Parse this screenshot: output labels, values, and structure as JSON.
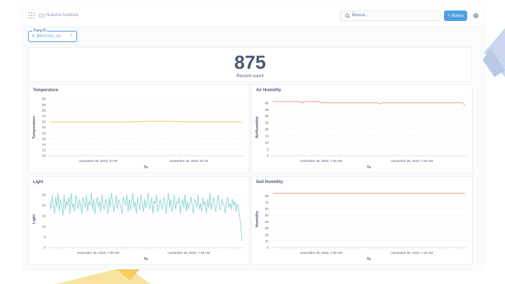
{
  "colors": {
    "accent": "#509ee3",
    "temperature": "#f2c94c",
    "air_humidity": "#ef8c8c",
    "light": "#88d3d4",
    "soil_humidity": "#ef8c8c"
  },
  "header": {
    "breadcrumb": "Nuestra Analítica",
    "search_placeholder": "Buscar...",
    "new_button": "Nuevo",
    "logo_icon": "metabase-logo-icon",
    "search_icon": "search-icon",
    "settings_icon": "gear-icon",
    "folder_icon": "folder-icon"
  },
  "filter": {
    "label": "Thing ID",
    "value": "P_BROCOLI_01",
    "clear": "×"
  },
  "kpi": {
    "value": "875",
    "label": "Record count"
  },
  "chart_data": [
    {
      "id": "temperature",
      "type": "line",
      "title": "Temperature",
      "xlabel": "Ts",
      "ylabel": "Temperature",
      "yticks": [
        10,
        12,
        14,
        16,
        18,
        20,
        22,
        24,
        26,
        28,
        30
      ],
      "ylim": [
        10,
        30
      ],
      "xtick_labels": [
        "noviembre 26, 2023, 07:00",
        "noviembre 26, 2023, 07:15"
      ],
      "xtick_pos": [
        0.255,
        0.72
      ],
      "series": [
        {
          "values": [
            21.8,
            21.8,
            21.8,
            21.8,
            21.8,
            21.8,
            21.8,
            21.8,
            21.8,
            21.8,
            21.8,
            21.8,
            21.8,
            21.8,
            21.8,
            21.8,
            21.8,
            21.8,
            21.8,
            21.8,
            21.9,
            21.9,
            22.0,
            22.0,
            22.0,
            22.1,
            22.1,
            22.1,
            22.1,
            22.1,
            22.1,
            22.1,
            22.0,
            22.0,
            22.0,
            21.9,
            21.9,
            21.9,
            21.9,
            21.9,
            21.9,
            21.9,
            21.9,
            21.9,
            21.9,
            21.9,
            21.9,
            21.9,
            21.9,
            21.9
          ]
        }
      ]
    },
    {
      "id": "air_humidity",
      "type": "line",
      "title": "Air Humidity",
      "xlabel": "Ts",
      "ylabel": "AirHumidity",
      "yticks": [
        0,
        5,
        10,
        15,
        20,
        25,
        30,
        35,
        40
      ],
      "ylim": [
        0,
        43
      ],
      "xtick_labels": [
        "noviembre 26, 2023, 7:00 AM",
        "noviembre 26, 2023, 7:15 AM"
      ],
      "xtick_pos": [
        0.255,
        0.72
      ],
      "series": [
        {
          "values": [
            41,
            41,
            41,
            41,
            41,
            41,
            41,
            41,
            41,
            41,
            41,
            41,
            40,
            41,
            41,
            41,
            41,
            41,
            41,
            41,
            40,
            40,
            40,
            40,
            40,
            40,
            40,
            40,
            40,
            40,
            40,
            40,
            40,
            40,
            40,
            40,
            40,
            40,
            40,
            40,
            40,
            40,
            40,
            40,
            39,
            40,
            40,
            40,
            40,
            40,
            40,
            40,
            40,
            40,
            40,
            40,
            40,
            40,
            40,
            40,
            40,
            40,
            40,
            40,
            40,
            40,
            40,
            40,
            40,
            40,
            40,
            40,
            40,
            40,
            40,
            40,
            40,
            40,
            40,
            38
          ]
        }
      ]
    },
    {
      "id": "light",
      "type": "line",
      "title": "Light",
      "xlabel": "Ts",
      "ylabel": "Light",
      "yticks": [
        0,
        5,
        10,
        15,
        20,
        25
      ],
      "ylim": [
        0,
        27
      ],
      "xtick_labels": [
        "noviembre 26, 2023, 7:00 AM",
        "noviembre 26, 2023, 7:15 AM"
      ],
      "xtick_pos": [
        0.255,
        0.72
      ],
      "series": [
        {
          "values": [
            22,
            18,
            25,
            20,
            16,
            24,
            19,
            26,
            17,
            23,
            21,
            15,
            25,
            18,
            22,
            20,
            24,
            16,
            26,
            19,
            21,
            17,
            25,
            22,
            18,
            23,
            20,
            16,
            24,
            21,
            19,
            25,
            17,
            22,
            20,
            26,
            18,
            23,
            16,
            21,
            24,
            19,
            22,
            17,
            25,
            20,
            18,
            23,
            21,
            16,
            24,
            19,
            26,
            22,
            17,
            20,
            25,
            18,
            23,
            21,
            19,
            16,
            24,
            22,
            20,
            25,
            17,
            23,
            18,
            21,
            26,
            19,
            22,
            16,
            24,
            20,
            18,
            25,
            21,
            17,
            23,
            19,
            22,
            26,
            18,
            20,
            24,
            16,
            22,
            21,
            25,
            17,
            19,
            23,
            20,
            18,
            24,
            22,
            16,
            21,
            26,
            19,
            23,
            17,
            20,
            25,
            18,
            22,
            21,
            24,
            16,
            20,
            23,
            19,
            25,
            17,
            22,
            18,
            21,
            24,
            20,
            16,
            23,
            22,
            19,
            25,
            18,
            21,
            17,
            24,
            20,
            22,
            16,
            23,
            19,
            26,
            18,
            21,
            24,
            20,
            17,
            22,
            25,
            19,
            18,
            23,
            21,
            20,
            16,
            22,
            24,
            19,
            21,
            18,
            23,
            20,
            22,
            17,
            21,
            19,
            15,
            10,
            3
          ]
        }
      ]
    },
    {
      "id": "soil_humidity",
      "type": "line",
      "title": "Soil Humidity",
      "xlabel": "Ts",
      "ylabel": "Humidity",
      "yticks": [
        0,
        10,
        20,
        30,
        40,
        50,
        60,
        70,
        80
      ],
      "ylim": [
        0,
        88
      ],
      "xtick_labels": [
        "noviembre 26, 2023, 7:00 AM",
        "noviembre 26, 2023, 7:15 AM"
      ],
      "xtick_pos": [
        0.255,
        0.72
      ],
      "series": [
        {
          "values": [
            84,
            84,
            84,
            84,
            84,
            84,
            84,
            84,
            84,
            84,
            84,
            84,
            84,
            84,
            84,
            84,
            84,
            84,
            84,
            84
          ]
        }
      ]
    }
  ]
}
